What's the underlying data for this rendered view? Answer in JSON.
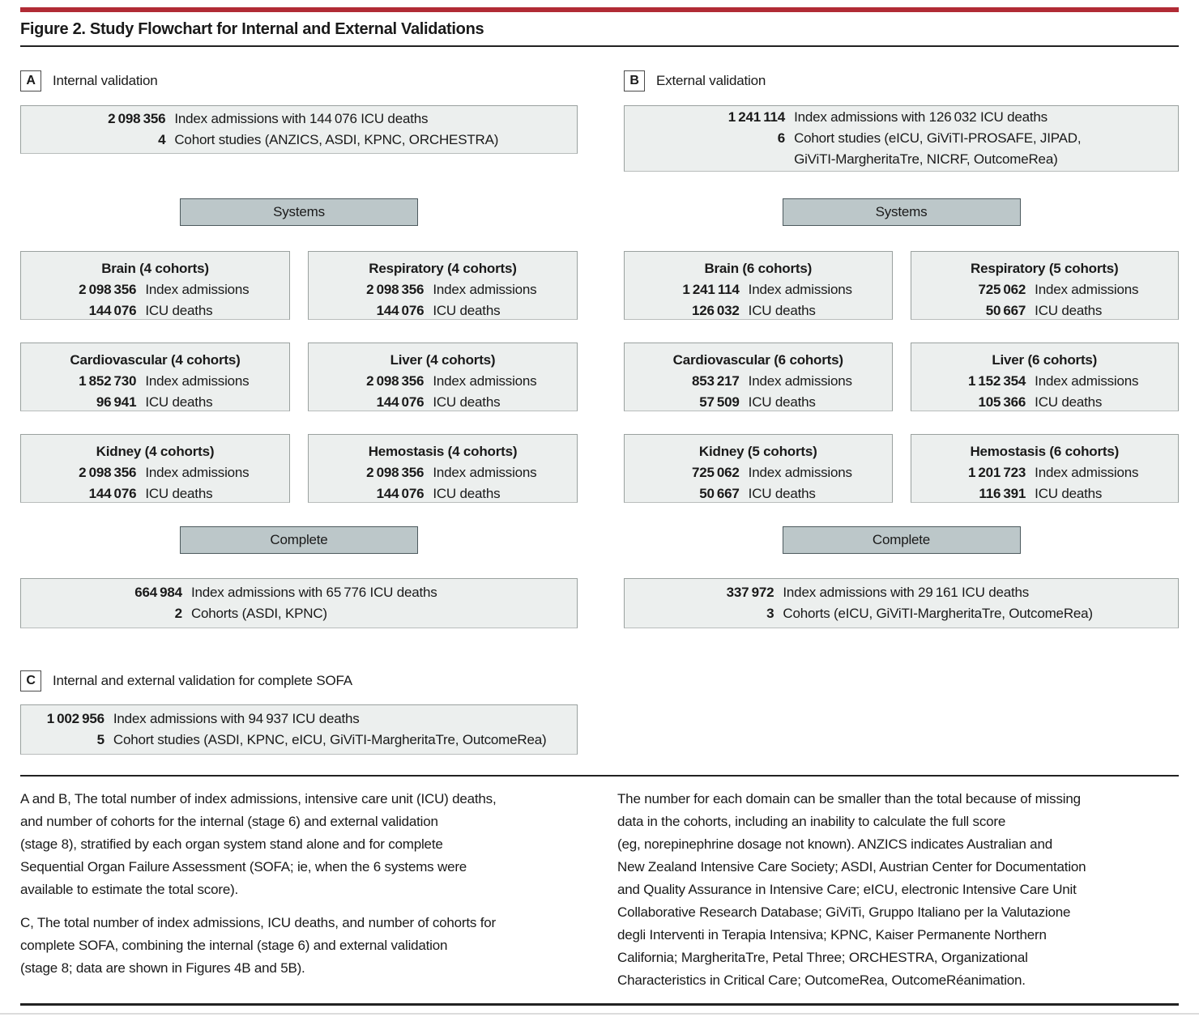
{
  "figure": {
    "title": "Figure 2. Study Flowchart for Internal and External Validations"
  },
  "colors": {
    "accent_red": "#B12B35",
    "box_fill": "#ECEFEE",
    "box_border": "#9AA19F",
    "header_fill": "#BCC7C9",
    "header_border": "#4D5A5E",
    "text": "#1A1A1A"
  },
  "panels": {
    "a": {
      "label": "A",
      "title": "Internal validation",
      "top_box": {
        "rows": [
          {
            "num": "2 098 356",
            "text": "Index admissions with 144 076 ICU deaths"
          },
          {
            "num": "4",
            "text": "Cohort studies (ANZICS, ASDI, KPNC, ORCHESTRA)"
          }
        ]
      },
      "systems_label": "Systems",
      "organs": [
        {
          "title": "Brain (4 cohorts)",
          "rows": [
            {
              "num": "2 098 356",
              "text": "Index admissions"
            },
            {
              "num": "144 076",
              "text": "ICU deaths"
            }
          ]
        },
        {
          "title": "Respiratory (4 cohorts)",
          "rows": [
            {
              "num": "2 098 356",
              "text": "Index admissions"
            },
            {
              "num": "144 076",
              "text": "ICU deaths"
            }
          ]
        },
        {
          "title": "Cardiovascular (4 cohorts)",
          "rows": [
            {
              "num": "1 852 730",
              "text": "Index admissions"
            },
            {
              "num": "96 941",
              "text": "ICU deaths"
            }
          ]
        },
        {
          "title": "Liver (4 cohorts)",
          "rows": [
            {
              "num": "2 098 356",
              "text": "Index admissions"
            },
            {
              "num": "144 076",
              "text": "ICU deaths"
            }
          ]
        },
        {
          "title": "Kidney (4 cohorts)",
          "rows": [
            {
              "num": "2 098 356",
              "text": "Index admissions"
            },
            {
              "num": "144 076",
              "text": "ICU deaths"
            }
          ]
        },
        {
          "title": "Hemostasis (4 cohorts)",
          "rows": [
            {
              "num": "2 098 356",
              "text": "Index admissions"
            },
            {
              "num": "144 076",
              "text": "ICU deaths"
            }
          ]
        }
      ],
      "complete_label": "Complete",
      "bottom_box": {
        "rows": [
          {
            "num": "664 984",
            "text": "Index admissions with 65 776 ICU deaths"
          },
          {
            "num": "2",
            "text": "Cohorts (ASDI, KPNC)"
          }
        ]
      }
    },
    "b": {
      "label": "B",
      "title": "External validation",
      "top_box": {
        "rows": [
          {
            "num": "1 241 114",
            "text": "Index admissions with 126 032 ICU deaths"
          },
          {
            "num": "6",
            "text": "Cohort studies (eICU, GiViTI-PROSAFE, JIPAD,"
          },
          {
            "num": "",
            "text": "GiViTI-MargheritaTre, NICRF, OutcomeRea)"
          }
        ]
      },
      "systems_label": "Systems",
      "organs": [
        {
          "title": "Brain (6 cohorts)",
          "rows": [
            {
              "num": "1 241 114",
              "text": "Index admissions"
            },
            {
              "num": "126 032",
              "text": "ICU deaths"
            }
          ]
        },
        {
          "title": "Respiratory (5 cohorts)",
          "rows": [
            {
              "num": "725 062",
              "text": "Index admissions"
            },
            {
              "num": "50 667",
              "text": "ICU deaths"
            }
          ]
        },
        {
          "title": "Cardiovascular (6 cohorts)",
          "rows": [
            {
              "num": "853 217",
              "text": "Index admissions"
            },
            {
              "num": "57 509",
              "text": "ICU deaths"
            }
          ]
        },
        {
          "title": "Liver (6 cohorts)",
          "rows": [
            {
              "num": "1 152 354",
              "text": "Index admissions"
            },
            {
              "num": "105 366",
              "text": "ICU deaths"
            }
          ]
        },
        {
          "title": "Kidney (5 cohorts)",
          "rows": [
            {
              "num": "725 062",
              "text": "Index admissions"
            },
            {
              "num": "50 667",
              "text": "ICU deaths"
            }
          ]
        },
        {
          "title": "Hemostasis (6 cohorts)",
          "rows": [
            {
              "num": "1 201 723",
              "text": "Index admissions"
            },
            {
              "num": "116 391",
              "text": "ICU deaths"
            }
          ]
        }
      ],
      "complete_label": "Complete",
      "bottom_box": {
        "rows": [
          {
            "num": "337 972",
            "text": "Index admissions with 29 161 ICU deaths"
          },
          {
            "num": "3",
            "text": "Cohorts (eICU, GiViTI-MargheritaTre, OutcomeRea)"
          }
        ]
      }
    },
    "c": {
      "label": "C",
      "title": "Internal and external validation for complete SOFA",
      "box": {
        "rows": [
          {
            "num": "1 002 956",
            "text": "Index admissions with 94 937 ICU deaths"
          },
          {
            "num": "5",
            "text": "Cohort studies (ASDI, KPNC, eICU, GiViTI-MargheritaTre, OutcomeRea)"
          }
        ]
      }
    }
  },
  "caption": {
    "left1": [
      "A and B, The total number of index admissions, intensive care unit (ICU) deaths,",
      "and number of cohorts for the internal (stage 6) and external validation",
      "(stage 8), stratified by each organ system stand alone and for complete",
      "Sequential Organ Failure Assessment (SOFA; ie, when the 6 systems were",
      "available to estimate the total score)."
    ],
    "left2": [
      "C, The total number of index admissions, ICU deaths, and number of cohorts for",
      "complete SOFA, combining the internal (stage 6) and external validation",
      "(stage 8; data are shown in Figures 4B and 5B)."
    ],
    "right": [
      "The number for each domain can be smaller than the total because of missing",
      "data in the cohorts, including an inability to calculate the full score",
      "(eg, norepinephrine dosage not known). ANZICS indicates Australian and",
      "New Zealand Intensive Care Society; ASDI, Austrian Center for Documentation",
      "and Quality Assurance in Intensive Care; eICU, electronic Intensive Care Unit",
      "Collaborative Research Database; GiViTi, Gruppo Italiano per la Valutazione",
      "degli Interventi in Terapia Intensiva; KPNC, Kaiser Permanente Northern",
      "California; MargheritaTre, Petal Three; ORCHESTRA, Organizational",
      "Characteristics in Critical Care; OutcomeRea, OutcomeRéanimation."
    ]
  }
}
